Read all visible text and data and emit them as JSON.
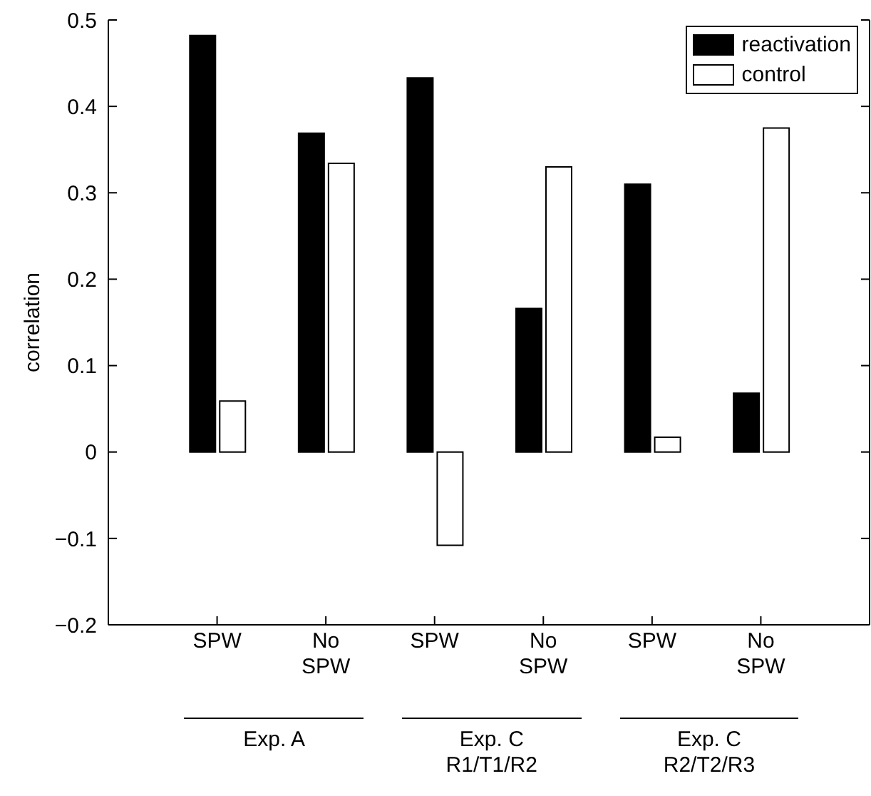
{
  "chart_data": {
    "type": "bar",
    "ylabel": "correlation",
    "categories": [
      "SPW",
      "No SPW",
      "SPW",
      "No SPW",
      "SPW",
      "No SPW"
    ],
    "series": [
      {
        "name": "reactivation",
        "color": "#000000",
        "values": [
          0.482,
          0.369,
          0.433,
          0.166,
          0.31,
          0.068
        ]
      },
      {
        "name": "control",
        "color": "#ffffff",
        "values": [
          0.059,
          0.334,
          -0.108,
          0.33,
          0.017,
          0.375
        ]
      }
    ],
    "ylim": [
      -0.2,
      0.5
    ],
    "yticks": [
      -0.2,
      -0.1,
      0,
      0.1,
      0.2,
      0.3,
      0.4,
      0.5
    ],
    "grid": false,
    "legend": "top right",
    "annotations": [
      "Exp. A",
      "Exp. C R1/T1/R2",
      "Exp. C R2/T2/R3"
    ]
  }
}
